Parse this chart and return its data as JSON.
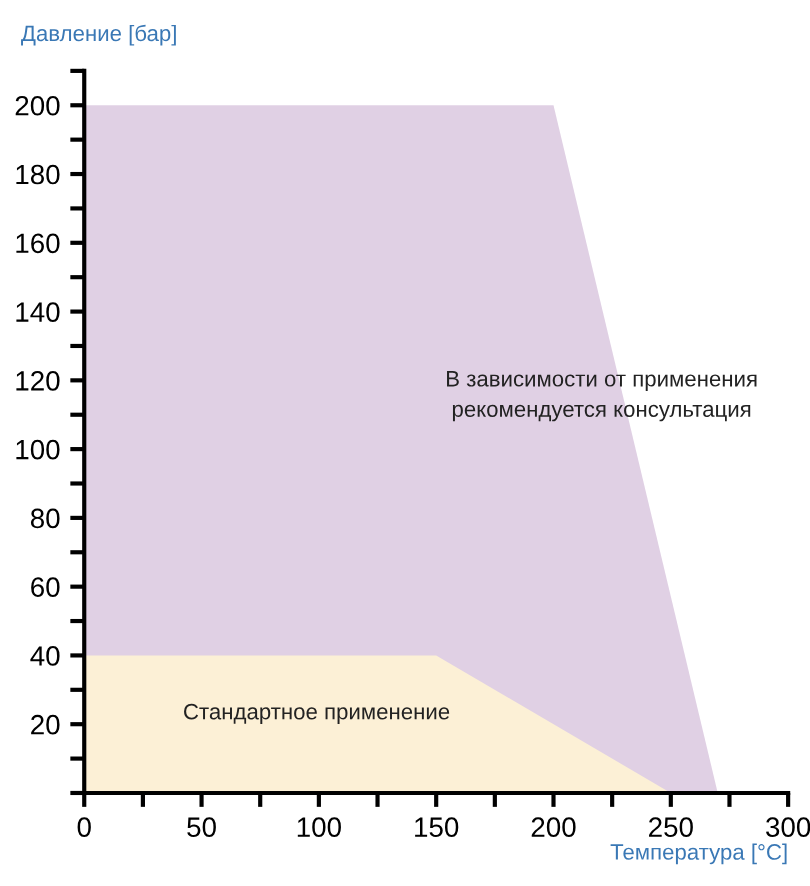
{
  "chart_data": {
    "type": "area",
    "xlabel": "Температура [°C]",
    "ylabel": "Давление [бар]",
    "series": [
      {
        "x": [
          0,
          200,
          270
        ],
        "values": [
          200,
          200,
          0
        ],
        "color": "#e0d0e4"
      },
      {
        "x": [
          0,
          150,
          250
        ],
        "values": [
          40,
          40,
          0
        ],
        "color": "#fcf0d6"
      }
    ],
    "annotations": [
      "В зависимости от применения\nрекомендуется консультация",
      "Стандартное применение"
    ],
    "xlim": [
      0,
      300
    ],
    "ylim": [
      0,
      210
    ],
    "xticks": [
      0,
      {
        "value": 25,
        "label": null
      },
      50,
      {
        "value": 75,
        "label": null
      },
      100,
      {
        "value": 125,
        "label": null
      },
      150,
      {
        "value": 175,
        "label": null
      },
      200,
      {
        "value": 225,
        "label": null
      },
      250,
      {
        "value": 275,
        "label": null
      },
      300
    ],
    "yticks": [
      {
        "value": 0,
        "label": null
      },
      {
        "value": 10,
        "label": null
      },
      20,
      {
        "value": 30,
        "label": null
      },
      40,
      {
        "value": 50,
        "label": null
      },
      60,
      {
        "value": 70,
        "label": null
      },
      80,
      {
        "value": 90,
        "label": null
      },
      100,
      {
        "value": 110,
        "label": null
      },
      120,
      {
        "value": 130,
        "label": null
      },
      140,
      {
        "value": 150,
        "label": null
      },
      160,
      {
        "value": 170,
        "label": null
      },
      180,
      {
        "value": 190,
        "label": null
      },
      200,
      {
        "value": 210,
        "label": null
      }
    ],
    "grid": false,
    "legend": false
  }
}
